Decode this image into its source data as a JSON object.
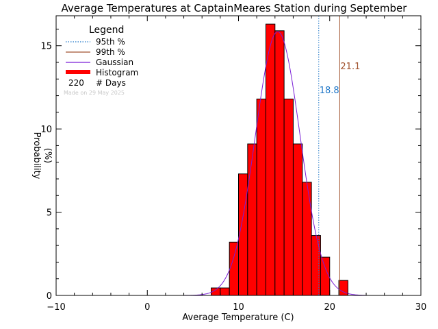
{
  "chart_data": {
    "type": "bar",
    "title": "Average Temperatures at CaptainMeares Station during September",
    "xlabel": "Average Temperature (C)",
    "ylabel": "Probability",
    "ylabel_units": "(%)",
    "xlim": [
      -10,
      30
    ],
    "ylim": [
      0,
      16.8
    ],
    "x_ticks": [
      -10,
      0,
      10,
      20,
      30
    ],
    "y_ticks": [
      0,
      5,
      10,
      15
    ],
    "grid": false,
    "legend_position": "top-left",
    "legend": {
      "title": "Legend",
      "entries": [
        {
          "label": "95th %",
          "color": "#1f77c8",
          "style": "dotted"
        },
        {
          "label": "99th %",
          "color": "#a0522d",
          "style": "solid"
        },
        {
          "label": "Gaussian",
          "color": "#7a1fd6",
          "style": "solid"
        },
        {
          "label": "Histogram",
          "color": "#ff0000",
          "style": "thick"
        }
      ],
      "days_count": "220",
      "days_label": "# Days"
    },
    "credit": "Made on 29 May 2025",
    "histogram": {
      "bin_width": 1,
      "bins": [
        {
          "x0": 7,
          "value": 0.45
        },
        {
          "x0": 8,
          "value": 0.45
        },
        {
          "x0": 9,
          "value": 3.2
        },
        {
          "x0": 10,
          "value": 7.3
        },
        {
          "x0": 11,
          "value": 9.1
        },
        {
          "x0": 12,
          "value": 11.8
        },
        {
          "x0": 13,
          "value": 16.3
        },
        {
          "x0": 14,
          "value": 15.9
        },
        {
          "x0": 15,
          "value": 11.8
        },
        {
          "x0": 16,
          "value": 9.1
        },
        {
          "x0": 17,
          "value": 6.8
        },
        {
          "x0": 18,
          "value": 3.6
        },
        {
          "x0": 19,
          "value": 2.3
        },
        {
          "x0": 21,
          "value": 0.9
        }
      ],
      "color": "#ff0000"
    },
    "gaussian": {
      "mean": 14.3,
      "sigma": 2.45,
      "peak": 15.85,
      "color": "#7a1fd6"
    },
    "percentiles": [
      {
        "name": "95th %",
        "value": 18.8,
        "label": "18.8",
        "color": "#1f77c8",
        "style": "dotted"
      },
      {
        "name": "99th %",
        "value": 21.1,
        "label": "21.1",
        "color": "#a0522d",
        "style": "solid"
      }
    ]
  }
}
